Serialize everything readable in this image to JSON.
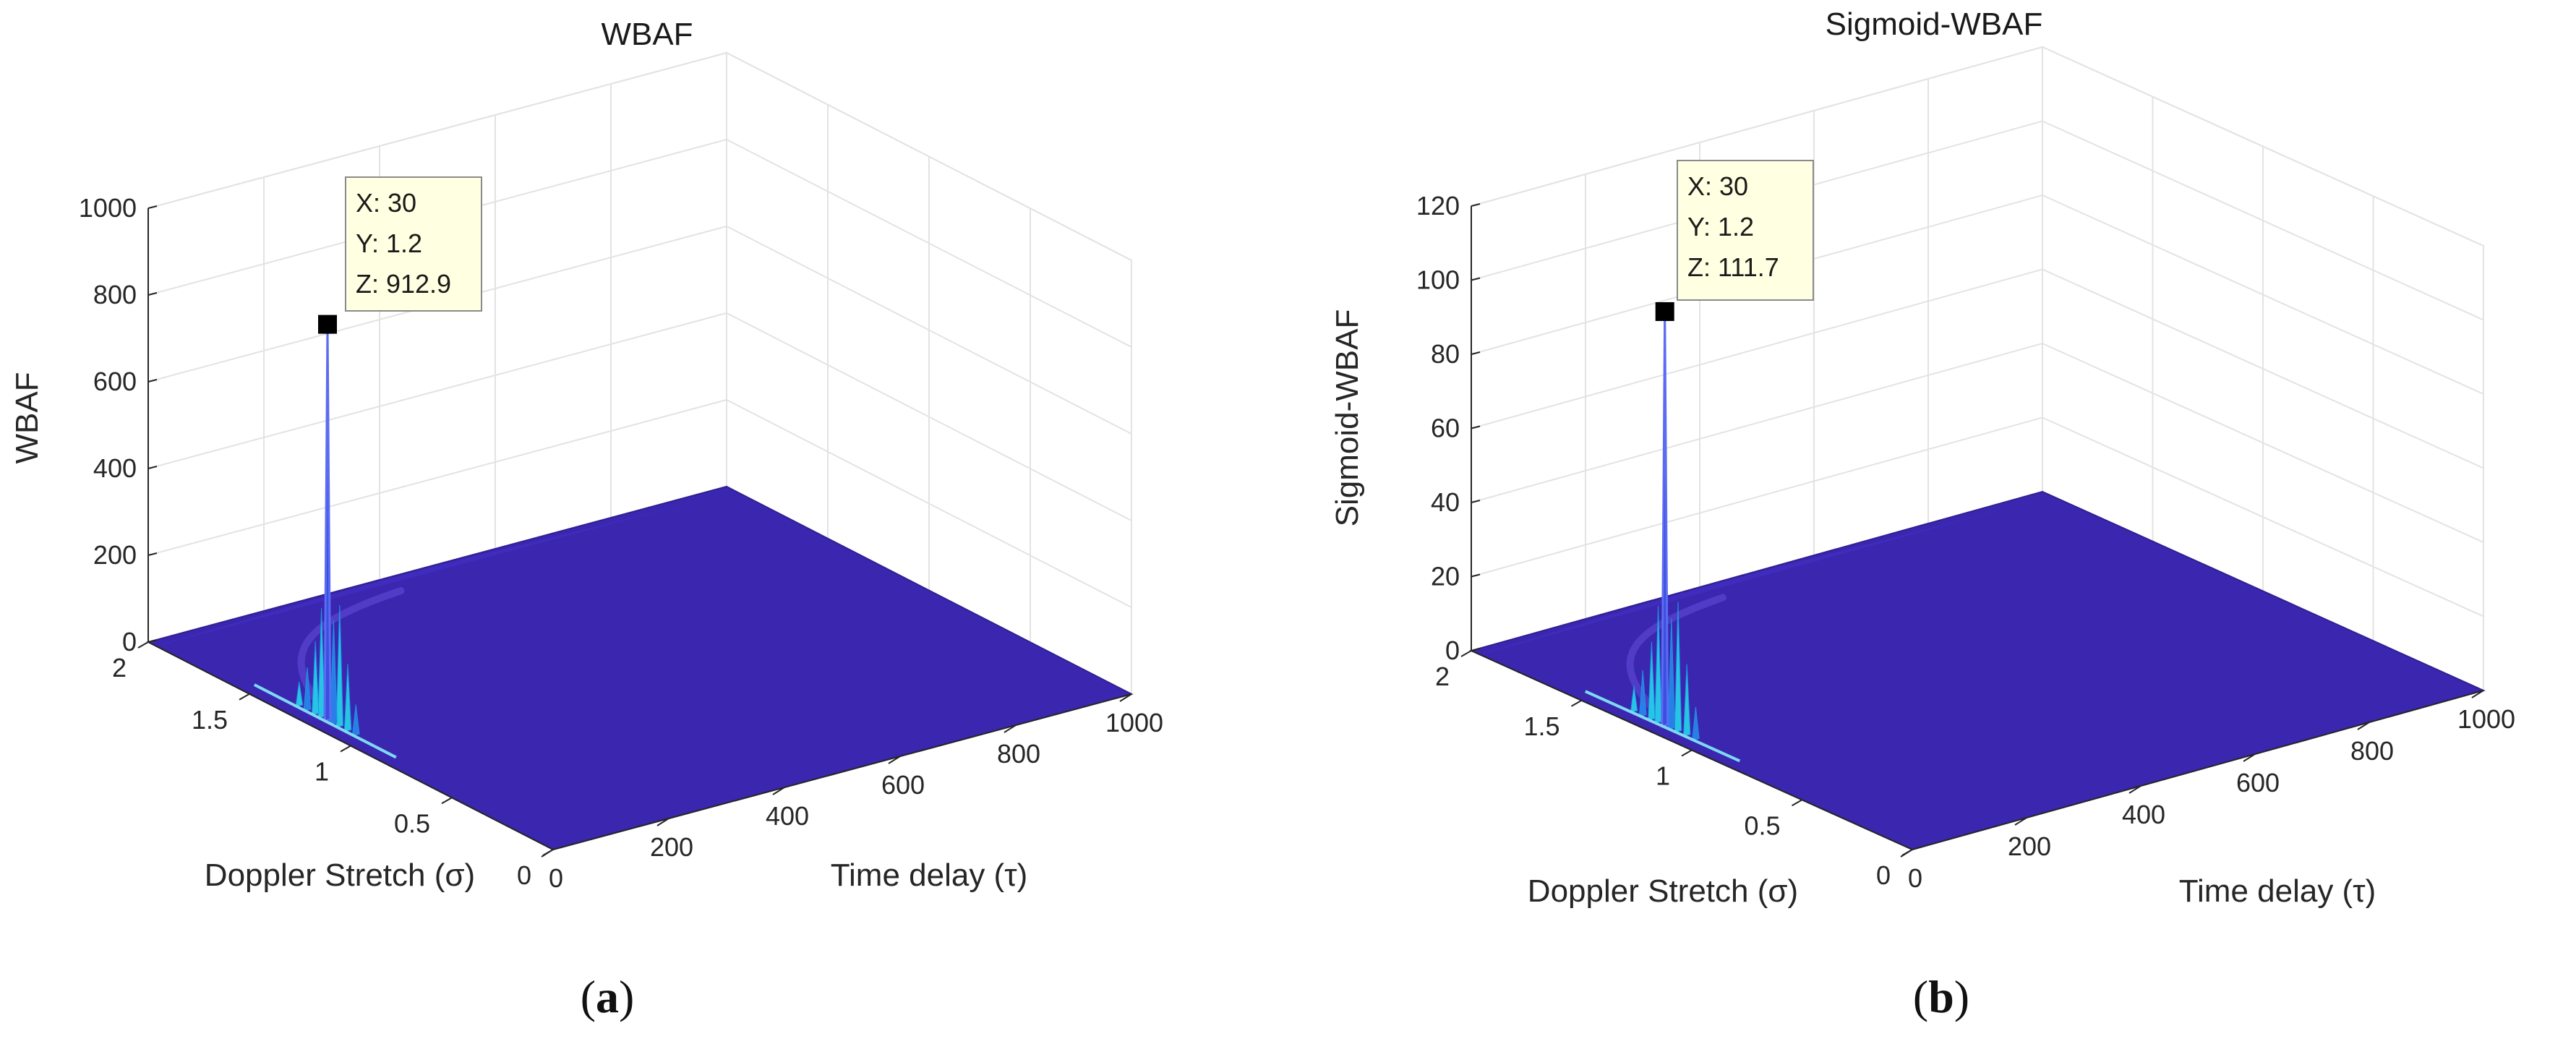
{
  "chart_data": [
    {
      "type": "surface",
      "title": "WBAF",
      "xlabel": "Time delay (τ)",
      "ylabel": "Doppler Stretch (σ)",
      "zlabel": "WBAF",
      "xlim": [
        0,
        1000
      ],
      "ylim": [
        0,
        2
      ],
      "zlim": [
        0,
        1000
      ],
      "x_ticks": [
        "0",
        "200",
        "400",
        "600",
        "800",
        "1000"
      ],
      "y_ticks": [
        "0",
        "0.5",
        "1",
        "1.5",
        "2"
      ],
      "z_ticks": [
        "0",
        "200",
        "400",
        "600",
        "800",
        "1000"
      ],
      "peak": {
        "x": 30,
        "y": 1.2,
        "z": 912.9
      },
      "ridge_height": 280,
      "datatip": [
        "X: 30",
        "Y: 1.2",
        "Z: 912.9"
      ],
      "caption": {
        "open": "(",
        "letter": "a",
        "close": ")"
      }
    },
    {
      "type": "surface",
      "title": "Sigmoid-WBAF",
      "xlabel": "Time delay (τ)",
      "ylabel": "Doppler Stretch (σ)",
      "zlabel": "Sigmoid-WBAF",
      "xlim": [
        0,
        1000
      ],
      "ylim": [
        0,
        2
      ],
      "zlim": [
        0,
        120
      ],
      "x_ticks": [
        "0",
        "200",
        "400",
        "600",
        "800",
        "1000"
      ],
      "y_ticks": [
        "0",
        "0.5",
        "1",
        "1.5",
        "2"
      ],
      "z_ticks": [
        "0",
        "20",
        "40",
        "60",
        "80",
        "100",
        "120"
      ],
      "peak": {
        "x": 30,
        "y": 1.2,
        "z": 111.7
      },
      "ridge_height": 35,
      "datatip": [
        "X: 30",
        "Y: 1.2",
        "Z: 111.7"
      ],
      "caption": {
        "open": "(",
        "letter": "b",
        "close": ")"
      }
    }
  ],
  "colors": {
    "surface": "#3b26b0",
    "surface_edge": "#2f1f94",
    "ridge_light": "#27c4e6",
    "ridge_mid": "#2a7ee8",
    "grid": "#e3e3e3",
    "axis": "#262626",
    "tip_fill": "#ffffe1",
    "tip_border": "#8a8a8a",
    "marker": "#000000"
  }
}
